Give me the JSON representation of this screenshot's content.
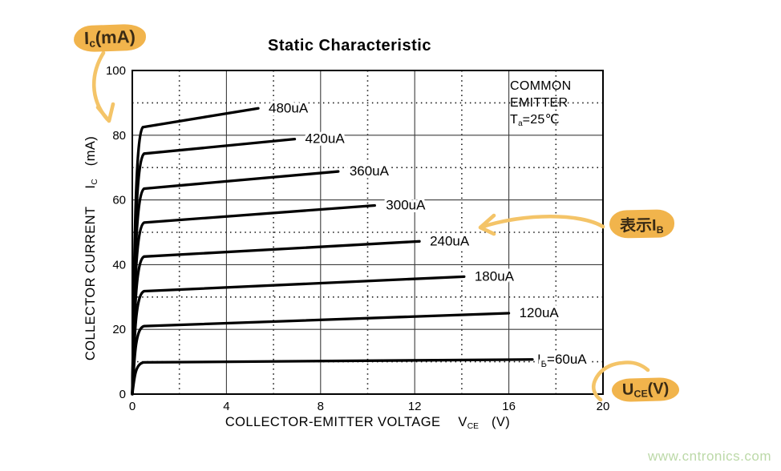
{
  "title": "Static Characteristic",
  "watermark": {
    "text": "www.cntronics.com",
    "color": "#bcd9a8"
  },
  "condition_block": {
    "line1": "COMMON",
    "line2": "EMITTER",
    "temp_sym": "T",
    "temp_sub": "a",
    "temp_rest": "=25℃"
  },
  "axes": {
    "x": {
      "label_main": "COLLECTOR-EMITTER VOLTAGE",
      "label_sym": "V",
      "label_sub": "CE",
      "label_unit": "(V)",
      "ticks": [
        0,
        4,
        8,
        12,
        16,
        20
      ]
    },
    "y": {
      "label_main": "COLLECTOR CURRENT",
      "label_sym": "I",
      "label_sub": "C",
      "label_unit": "(mA)",
      "ticks": [
        0,
        20,
        40,
        60,
        80,
        100
      ]
    }
  },
  "chart_data": {
    "type": "line",
    "title": "Static Characteristic",
    "xlabel": "COLLECTOR-EMITTER VOLTAGE VCE (V)",
    "ylabel": "COLLECTOR CURRENT IC (mA)",
    "xlim": [
      0,
      20
    ],
    "ylim": [
      0,
      100
    ],
    "grid": {
      "solid_x": [
        4,
        8,
        12,
        16
      ],
      "solid_y": [
        20,
        40,
        60,
        80
      ],
      "dotted_x": [
        2,
        6,
        10,
        14,
        18
      ],
      "dotted_y": [
        10,
        30,
        50,
        70,
        90
      ]
    },
    "series_note": "Each curve: Ic rises steeply from (0,0) to sat_mA near knee_v, then climbs linearly to (end_v, end_mA)",
    "series": [
      {
        "label": "IB=60uA",
        "label_pre": "I",
        "label_sub": "B",
        "label_post": "=60uA",
        "ib_uA": 60,
        "sat_mA": 9.8,
        "knee_v": 0.5,
        "end_v": 17.0,
        "end_mA": 10.7,
        "label_dx": 6
      },
      {
        "label": "120uA",
        "ib_uA": 120,
        "sat_mA": 21.0,
        "knee_v": 0.5,
        "end_v": 16.0,
        "end_mA": 25.0,
        "label_dx": 13
      },
      {
        "label": "180uA",
        "ib_uA": 180,
        "sat_mA": 31.8,
        "knee_v": 0.5,
        "end_v": 14.1,
        "end_mA": 36.3,
        "label_dx": 13
      },
      {
        "label": "240uA",
        "ib_uA": 240,
        "sat_mA": 42.5,
        "knee_v": 0.5,
        "end_v": 12.2,
        "end_mA": 47.2,
        "label_dx": 13
      },
      {
        "label": "300uA",
        "ib_uA": 300,
        "sat_mA": 53.0,
        "knee_v": 0.5,
        "end_v": 10.3,
        "end_mA": 58.3,
        "label_dx": 14
      },
      {
        "label": "360uA",
        "ib_uA": 360,
        "sat_mA": 63.5,
        "knee_v": 0.5,
        "end_v": 8.75,
        "end_mA": 68.8,
        "label_dx": 14
      },
      {
        "label": "420uA",
        "ib_uA": 420,
        "sat_mA": 74.3,
        "knee_v": 0.5,
        "end_v": 6.9,
        "end_mA": 78.8,
        "label_dx": 13
      },
      {
        "label": "480uA",
        "ib_uA": 480,
        "sat_mA": 82.5,
        "knee_v": 0.45,
        "end_v": 5.35,
        "end_mA": 88.3,
        "label_dx": 13
      }
    ]
  },
  "annotations": {
    "ic_note": {
      "sym": "I",
      "sub": "c",
      "rest": "(mA)"
    },
    "ib_note": {
      "prefix": "表示",
      "sym": "I",
      "sub": "B"
    },
    "uce_note": {
      "sym": "U",
      "sub": "CE",
      "rest": "(V)"
    },
    "highlight_color": "#f1b44c",
    "ink_color": "#3a2b15",
    "arrow_color": "#f4c468"
  }
}
